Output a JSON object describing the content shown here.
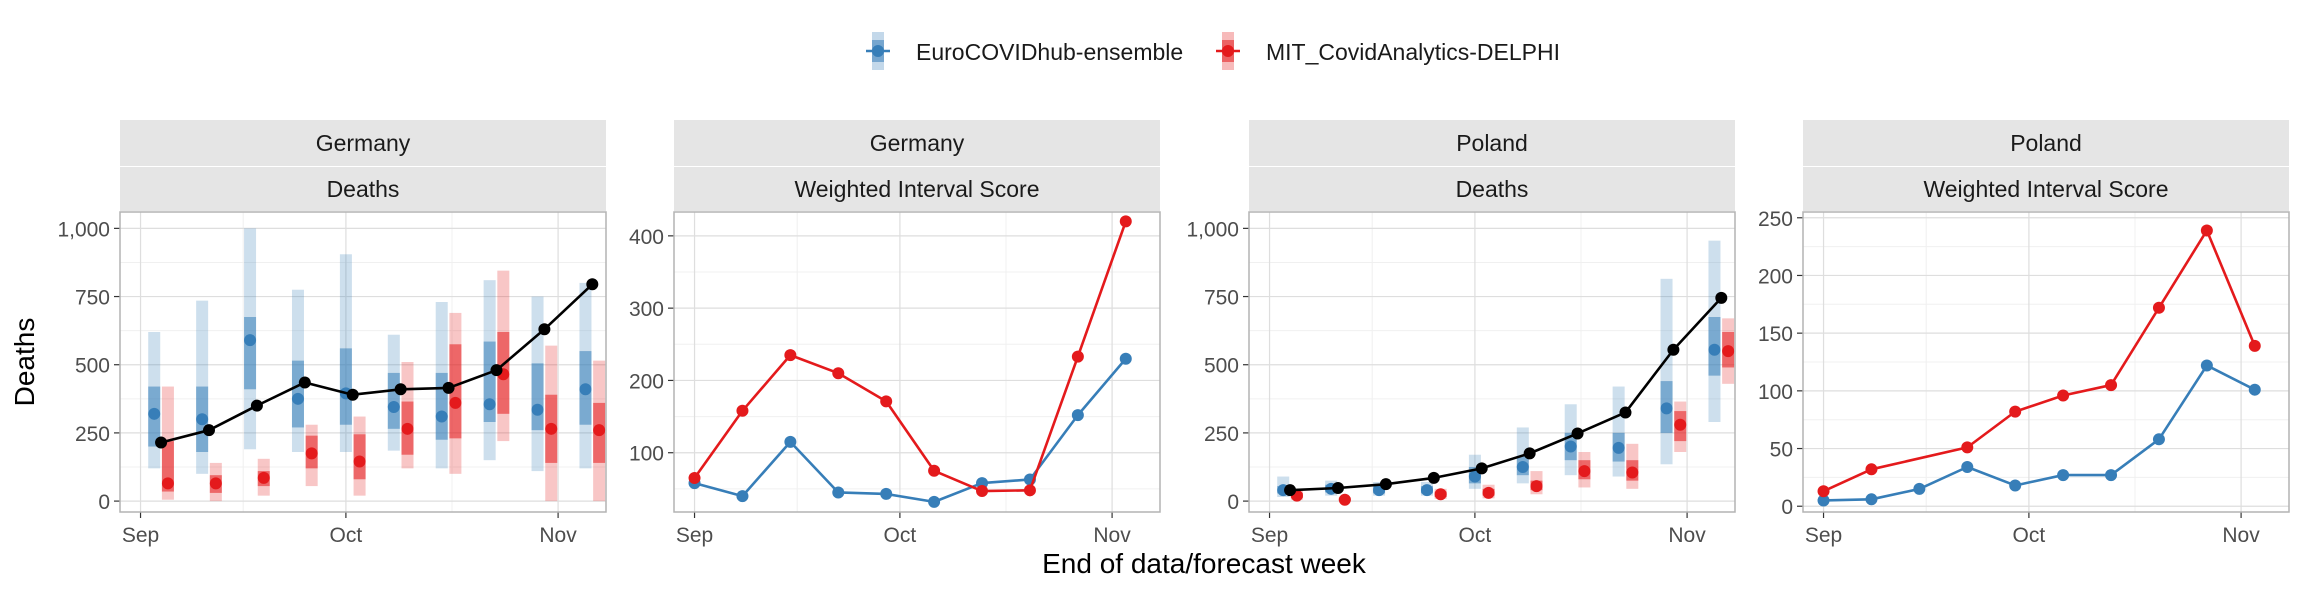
{
  "legend": {
    "entries": [
      {
        "label": "EuroCOVIDhub-ensemble",
        "color": "#377eb8"
      },
      {
        "label": "MIT_CovidAnalytics-DELPHI",
        "color": "#e41a1c"
      }
    ]
  },
  "y_axis_title": "Deaths",
  "x_axis_title": "End of data/forecast week",
  "chart_data": [
    {
      "type": "line",
      "strip_top": "Germany",
      "strip_bottom": "Deaths",
      "ylim": [
        -40,
        1060
      ],
      "yticks": [
        0,
        250,
        500,
        750,
        1000
      ],
      "ytick_labels": [
        "0",
        "250",
        "500",
        "750",
        "1,000"
      ],
      "xlim": [
        "2021-08-29",
        "2021-11-08"
      ],
      "xticks": [
        "2021-09-01",
        "2021-10-01",
        "2021-11-01"
      ],
      "xtick_labels": [
        "Sep",
        "Oct",
        "Nov"
      ],
      "observed": {
        "color": "#000000",
        "x": [
          "2021-09-04",
          "2021-09-11",
          "2021-09-18",
          "2021-09-25",
          "2021-10-02",
          "2021-10-09",
          "2021-10-16",
          "2021-10-23",
          "2021-10-30",
          "2021-11-06"
        ],
        "y": [
          215,
          260,
          350,
          435,
          390,
          410,
          415,
          480,
          630,
          795
        ]
      },
      "series": [
        {
          "name": "EuroCOVIDhub-ensemble",
          "color": "#377eb8",
          "x": [
            "2021-09-03",
            "2021-09-10",
            "2021-09-17",
            "2021-09-24",
            "2021-10-01",
            "2021-10-08",
            "2021-10-15",
            "2021-10-22",
            "2021-10-29",
            "2021-11-05"
          ],
          "median": [
            320,
            300,
            590,
            375,
            395,
            345,
            310,
            355,
            335,
            410
          ],
          "inner": [
            [
              200,
              420
            ],
            [
              180,
              420
            ],
            [
              410,
              675
            ],
            [
              270,
              515
            ],
            [
              280,
              560
            ],
            [
              265,
              470
            ],
            [
              225,
              470
            ],
            [
              290,
              585
            ],
            [
              260,
              505
            ],
            [
              280,
              550
            ]
          ],
          "outer": [
            [
              120,
              620
            ],
            [
              100,
              735
            ],
            [
              190,
              1000
            ],
            [
              180,
              775
            ],
            [
              180,
              905
            ],
            [
              185,
              610
            ],
            [
              120,
              730
            ],
            [
              150,
              810
            ],
            [
              110,
              750
            ],
            [
              120,
              800
            ]
          ]
        },
        {
          "name": "MIT_CovidAnalytics-DELPHI",
          "color": "#e41a1c",
          "x": [
            "2021-09-05",
            "2021-09-12",
            "2021-09-19",
            "2021-09-26",
            "2021-10-03",
            "2021-10-10",
            "2021-10-17",
            "2021-10-24",
            "2021-10-31",
            "2021-11-07"
          ],
          "median": [
            65,
            65,
            85,
            175,
            145,
            265,
            360,
            465,
            265,
            260
          ],
          "inner": [
            [
              35,
              220
            ],
            [
              30,
              95
            ],
            [
              55,
              110
            ],
            [
              120,
              240
            ],
            [
              80,
              245
            ],
            [
              170,
              365
            ],
            [
              230,
              575
            ],
            [
              320,
              620
            ],
            [
              140,
              390
            ],
            [
              140,
              360
            ]
          ],
          "outer": [
            [
              5,
              420
            ],
            [
              0,
              140
            ],
            [
              20,
              155
            ],
            [
              55,
              280
            ],
            [
              20,
              310
            ],
            [
              120,
              510
            ],
            [
              100,
              690
            ],
            [
              220,
              845
            ],
            [
              0,
              570
            ],
            [
              0,
              515
            ]
          ]
        }
      ]
    },
    {
      "type": "line",
      "strip_top": "Germany",
      "strip_bottom": "Weighted Interval Score",
      "ylim": [
        18,
        433
      ],
      "yticks": [
        100,
        200,
        300,
        400
      ],
      "ytick_labels": [
        "100",
        "200",
        "300",
        "400"
      ],
      "xlim": [
        "2021-08-29",
        "2021-11-08"
      ],
      "xticks": [
        "2021-09-01",
        "2021-10-01",
        "2021-11-01"
      ],
      "xtick_labels": [
        "Sep",
        "Oct",
        "Nov"
      ],
      "series": [
        {
          "name": "EuroCOVIDhub-ensemble",
          "color": "#377eb8",
          "x": [
            "2021-09-01",
            "2021-09-08",
            "2021-09-15",
            "2021-09-22",
            "2021-09-29",
            "2021-10-06",
            "2021-10-13",
            "2021-10-20",
            "2021-10-27",
            "2021-11-03"
          ],
          "y": [
            58,
            40,
            115,
            45,
            43,
            32,
            58,
            63,
            152,
            230
          ]
        },
        {
          "name": "MIT_CovidAnalytics-DELPHI",
          "color": "#e41a1c",
          "x": [
            "2021-09-01",
            "2021-09-08",
            "2021-09-15",
            "2021-09-22",
            "2021-09-29",
            "2021-10-06",
            "2021-10-13",
            "2021-10-20",
            "2021-10-27",
            "2021-11-03"
          ],
          "y": [
            65,
            158,
            235,
            210,
            171,
            75,
            47,
            48,
            233,
            420
          ]
        }
      ]
    },
    {
      "type": "line",
      "strip_top": "Poland",
      "strip_bottom": "Deaths",
      "ylim": [
        -40,
        1060
      ],
      "yticks": [
        0,
        250,
        500,
        750,
        1000
      ],
      "ytick_labels": [
        "0",
        "250",
        "500",
        "750",
        "1,000"
      ],
      "xlim": [
        "2021-08-29",
        "2021-11-08"
      ],
      "xticks": [
        "2021-09-01",
        "2021-10-01",
        "2021-11-01"
      ],
      "xtick_labels": [
        "Sep",
        "Oct",
        "Nov"
      ],
      "observed": {
        "color": "#000000",
        "x": [
          "2021-09-04",
          "2021-09-11",
          "2021-09-18",
          "2021-09-25",
          "2021-10-02",
          "2021-10-09",
          "2021-10-16",
          "2021-10-23",
          "2021-10-30",
          "2021-11-06"
        ],
        "y": [
          40,
          48,
          62,
          85,
          120,
          175,
          248,
          325,
          555,
          745
        ]
      },
      "series": [
        {
          "name": "EuroCOVIDhub-ensemble",
          "color": "#377eb8",
          "x": [
            "2021-09-03",
            "2021-09-10",
            "2021-09-17",
            "2021-09-24",
            "2021-10-01",
            "2021-10-08",
            "2021-10-15",
            "2021-10-22",
            "2021-10-29",
            "2021-11-05"
          ],
          "median": [
            40,
            45,
            40,
            40,
            90,
            125,
            200,
            195,
            340,
            555
          ],
          "inner": [
            [
              28,
              55
            ],
            [
              32,
              60
            ],
            [
              28,
              55
            ],
            [
              28,
              55
            ],
            [
              65,
              125
            ],
            [
              95,
              165
            ],
            [
              150,
              250
            ],
            [
              145,
              250
            ],
            [
              250,
              440
            ],
            [
              460,
              675
            ]
          ],
          "outer": [
            [
              15,
              90
            ],
            [
              20,
              75
            ],
            [
              20,
              70
            ],
            [
              20,
              70
            ],
            [
              45,
              170
            ],
            [
              65,
              270
            ],
            [
              95,
              355
            ],
            [
              90,
              420
            ],
            [
              135,
              815
            ],
            [
              290,
              955
            ]
          ]
        },
        {
          "name": "MIT_CovidAnalytics-DELPHI",
          "color": "#e41a1c",
          "x": [
            "2021-09-05",
            "2021-09-12",
            "2021-09-19",
            "2021-09-26",
            "2021-10-03",
            "2021-10-10",
            "2021-10-17",
            "2021-10-24",
            "2021-10-31",
            "2021-11-07"
          ],
          "median": [
            20,
            5,
            null,
            25,
            30,
            55,
            110,
            105,
            280,
            550
          ],
          "inner": [
            [
              12,
              30
            ],
            [
              2,
              10
            ],
            null,
            [
              15,
              35
            ],
            [
              20,
              45
            ],
            [
              40,
              75
            ],
            [
              80,
              150
            ],
            [
              75,
              150
            ],
            [
              220,
              330
            ],
            [
              490,
              620
            ]
          ],
          "outer": [
            [
              5,
              45
            ],
            [
              0,
              15
            ],
            null,
            [
              8,
              45
            ],
            [
              10,
              60
            ],
            [
              25,
              110
            ],
            [
              50,
              180
            ],
            [
              45,
              210
            ],
            [
              180,
              365
            ],
            [
              430,
              670
            ]
          ]
        }
      ]
    },
    {
      "type": "line",
      "strip_top": "Poland",
      "strip_bottom": "Weighted Interval Score",
      "ylim": [
        -5,
        255
      ],
      "yticks": [
        0,
        50,
        100,
        150,
        200,
        250
      ],
      "ytick_labels": [
        "0",
        "50",
        "100",
        "150",
        "200",
        "250"
      ],
      "xlim": [
        "2021-08-29",
        "2021-11-08"
      ],
      "xticks": [
        "2021-09-01",
        "2021-10-01",
        "2021-11-01"
      ],
      "xtick_labels": [
        "Sep",
        "Oct",
        "Nov"
      ],
      "series": [
        {
          "name": "EuroCOVIDhub-ensemble",
          "color": "#377eb8",
          "x": [
            "2021-09-01",
            "2021-09-08",
            "2021-09-15",
            "2021-09-22",
            "2021-09-29",
            "2021-10-06",
            "2021-10-13",
            "2021-10-20",
            "2021-10-27",
            "2021-11-03"
          ],
          "y": [
            5,
            6,
            15,
            34,
            18,
            27,
            27,
            58,
            122,
            101
          ]
        },
        {
          "name": "MIT_CovidAnalytics-DELPHI",
          "color": "#e41a1c",
          "x": [
            "2021-09-01",
            "2021-09-08",
            "2021-09-22",
            "2021-09-29",
            "2021-10-06",
            "2021-10-13",
            "2021-10-20",
            "2021-10-27",
            "2021-11-03"
          ],
          "y": [
            13,
            32,
            51,
            82,
            96,
            105,
            172,
            239,
            139
          ]
        }
      ]
    }
  ]
}
